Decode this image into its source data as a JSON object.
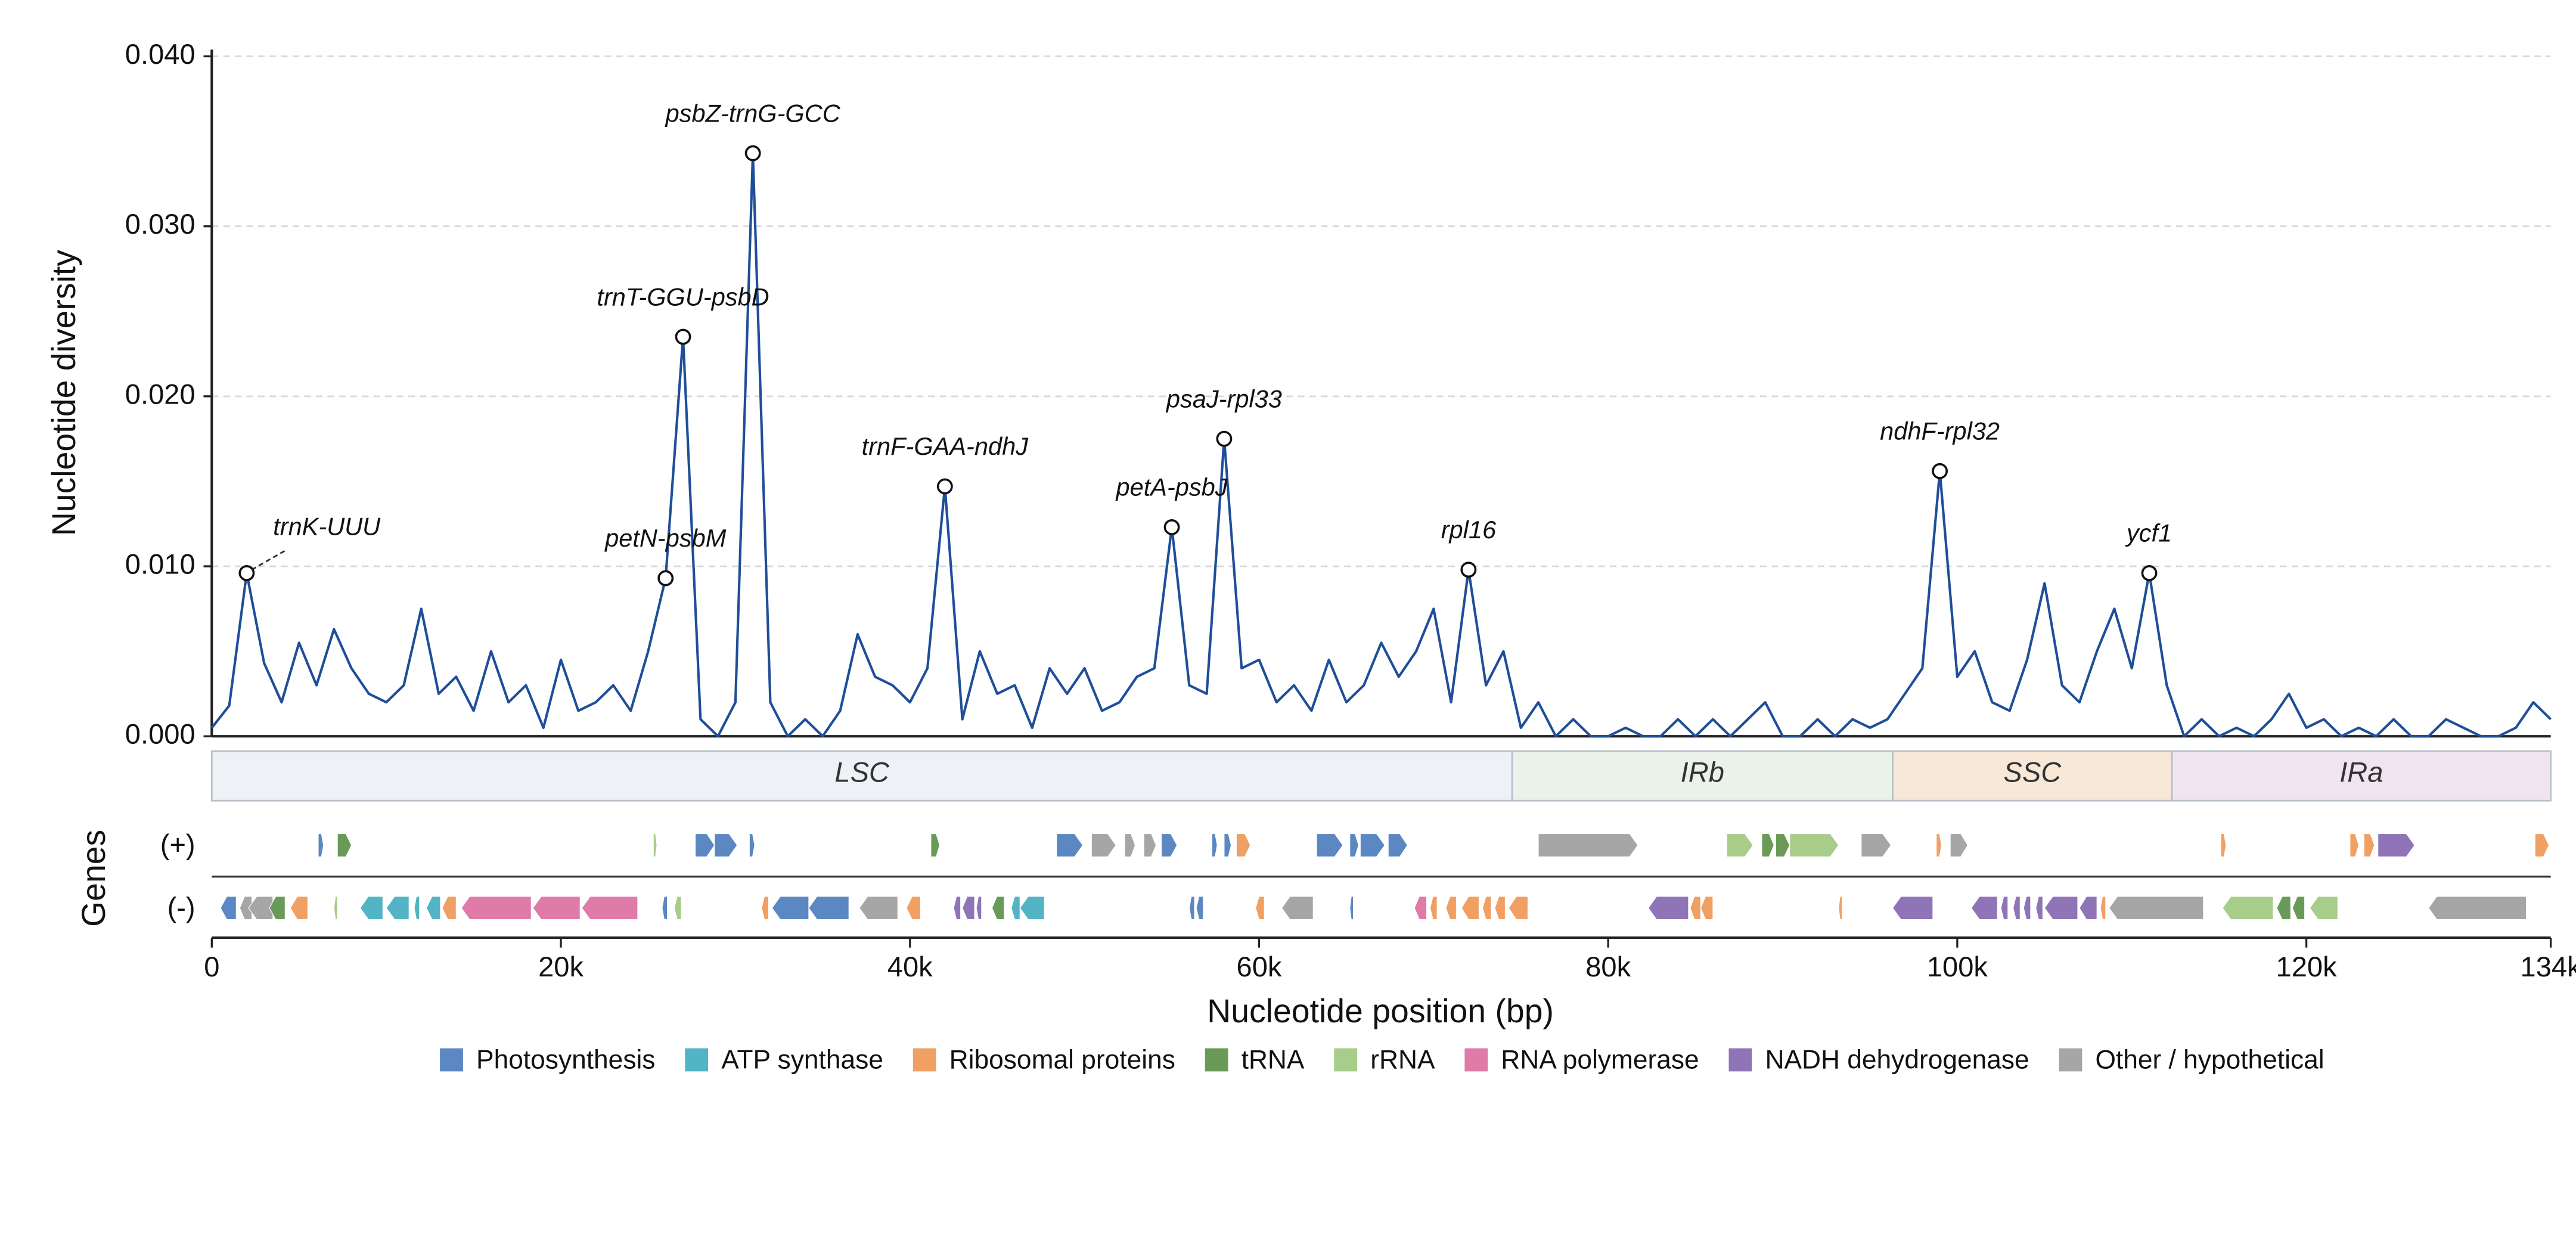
{
  "chart_data": {
    "type": "line",
    "ylabel": "Nucleotide diversity",
    "xlabel": "Nucleotide position (bp)",
    "genes_label": "Genes",
    "strands": [
      "(+)",
      "(-)"
    ],
    "color": "#1f4e99",
    "grid": true,
    "xlim": [
      0,
      134000
    ],
    "ylim": [
      0,
      0.0404
    ],
    "xticks": [
      0,
      {
        "value": 20000,
        "label": "20k"
      },
      {
        "value": 40000,
        "label": "40k"
      },
      {
        "value": 60000,
        "label": "60k"
      },
      {
        "value": 80000,
        "label": "80k"
      },
      {
        "value": 100000,
        "label": "100k"
      },
      {
        "value": 120000,
        "label": "120k"
      },
      {
        "value": 134000,
        "label": "134k"
      }
    ],
    "yticks": [
      {
        "value": 0,
        "label": "0.000"
      },
      {
        "value": 0.01,
        "label": "0.010"
      },
      {
        "value": 0.02,
        "label": "0.020"
      },
      {
        "value": 0.03,
        "label": "0.030"
      },
      {
        "value": 0.04,
        "label": "0.040"
      }
    ],
    "x": [
      0,
      1000,
      2000,
      3000,
      4000,
      5000,
      6000,
      7000,
      8000,
      9000,
      10000,
      11000,
      12000,
      13000,
      14000,
      15000,
      16000,
      17000,
      18000,
      19000,
      20000,
      21000,
      22000,
      23000,
      24000,
      25000,
      26000,
      27000,
      28000,
      29000,
      30000,
      31000,
      32000,
      33000,
      34000,
      35000,
      36000,
      37000,
      38000,
      39000,
      40000,
      41000,
      42000,
      43000,
      44000,
      45000,
      46000,
      47000,
      48000,
      49000,
      50000,
      51000,
      52000,
      53000,
      54000,
      55000,
      56000,
      57000,
      58000,
      59000,
      60000,
      61000,
      62000,
      63000,
      64000,
      65000,
      66000,
      67000,
      68000,
      69000,
      70000,
      71000,
      72000,
      73000,
      74000,
      75000,
      76000,
      77000,
      78000,
      79000,
      80000,
      81000,
      82000,
      83000,
      84000,
      85000,
      86000,
      87000,
      88000,
      89000,
      90000,
      91000,
      92000,
      93000,
      94000,
      95000,
      96000,
      97000,
      98000,
      99000,
      100000,
      101000,
      102000,
      103000,
      104000,
      105000,
      106000,
      107000,
      108000,
      109000,
      110000,
      111000,
      112000,
      113000,
      114000,
      115000,
      116000,
      117000,
      118000,
      119000,
      120000,
      121000,
      122000,
      123000,
      124000,
      125000,
      126000,
      127000,
      128000,
      129000,
      130000,
      131000,
      132000,
      133000,
      134000
    ],
    "values": [
      0.0005,
      0.0018,
      0.0096,
      0.0043,
      0.002,
      0.0055,
      0.003,
      0.0063,
      0.004,
      0.0025,
      0.002,
      0.003,
      0.0075,
      0.0025,
      0.0035,
      0.0015,
      0.005,
      0.002,
      0.003,
      0.0005,
      0.0045,
      0.0015,
      0.002,
      0.003,
      0.0015,
      0.005,
      0.0093,
      0.0235,
      0.001,
      0,
      0.002,
      0.0343,
      0.002,
      0,
      0.001,
      0,
      0.0015,
      0.006,
      0.0035,
      0.003,
      0.002,
      0.004,
      0.0147,
      0.001,
      0.005,
      0.0025,
      0.003,
      0.0005,
      0.004,
      0.0025,
      0.004,
      0.0015,
      0.002,
      0.0035,
      0.004,
      0.0123,
      0.003,
      0.0025,
      0.0175,
      0.004,
      0.0045,
      0.002,
      0.003,
      0.0015,
      0.0045,
      0.002,
      0.003,
      0.0055,
      0.0035,
      0.005,
      0.0075,
      0.002,
      0.0098,
      0.003,
      0.005,
      0.0005,
      0.002,
      0,
      0.001,
      0,
      0,
      0.0005,
      0,
      0,
      0.001,
      0,
      0.001,
      0,
      0.001,
      0.002,
      0,
      0,
      0.001,
      0,
      0.001,
      0.0005,
      0.001,
      0.0025,
      0.004,
      0.0156,
      0.0035,
      0.005,
      0.002,
      0.0015,
      0.0045,
      0.009,
      0.003,
      0.002,
      0.005,
      0.0075,
      0.004,
      0.0096,
      0.003,
      0,
      0.001,
      0,
      0.0005,
      0,
      0.001,
      0.0025,
      0.0005,
      0.001,
      0,
      0.0005,
      0,
      0.001,
      0,
      0,
      0.001,
      0.0005,
      0,
      0,
      0.0005,
      0.002,
      0.001
    ],
    "annotations": [
      {
        "label": "trnK-UUU",
        "x": 2000,
        "y": 0.0096
      },
      {
        "label": "petN-psbM",
        "x": 26000,
        "y": 0.0093
      },
      {
        "label": "trnT-GGU-psbD",
        "x": 27000,
        "y": 0.0235
      },
      {
        "label": "psbZ-trnG-GCC",
        "x": 31000,
        "y": 0.0343
      },
      {
        "label": "trnF-GAA-ndhJ",
        "x": 42000,
        "y": 0.0147
      },
      {
        "label": "petA-psbJ",
        "x": 55000,
        "y": 0.0123
      },
      {
        "label": "psaJ-rpl33",
        "x": 58000,
        "y": 0.0175
      },
      {
        "label": "rpl16",
        "x": 72000,
        "y": 0.0098
      },
      {
        "label": "ndhF-rpl32",
        "x": 99000,
        "y": 0.0156
      },
      {
        "label": "ycf1",
        "x": 111000,
        "y": 0.0096
      }
    ],
    "regions": [
      {
        "name": "LSC",
        "start": 0,
        "end": 74500,
        "color": "#eef2f6"
      },
      {
        "name": "IRb",
        "start": 74500,
        "end": 96300,
        "color": "#ebf2ea"
      },
      {
        "name": "SSC",
        "start": 96300,
        "end": 112300,
        "color": "#f8e8d8"
      },
      {
        "name": "IRa",
        "start": 112300,
        "end": 134000,
        "color": "#f1e4f1"
      }
    ],
    "gene_categories": [
      {
        "name": "Photosynthesis",
        "color": "#5b87c2"
      },
      {
        "name": "ATP synthase",
        "color": "#52b4c4"
      },
      {
        "name": "Ribosomal proteins",
        "color": "#f0a062"
      },
      {
        "name": "tRNA",
        "color": "#6a9a58"
      },
      {
        "name": "rRNA",
        "color": "#a8cc8a"
      },
      {
        "name": "RNA polymerase",
        "color": "#e07aa8"
      },
      {
        "name": "NADH dehydrogenase",
        "color": "#8f75b8"
      },
      {
        "name": "Other / hypothetical",
        "color": "#a6a6a6"
      }
    ],
    "genes": [
      {
        "start": 6100,
        "end": 6400,
        "strand": 0,
        "category": 0
      },
      {
        "start": 7200,
        "end": 8000,
        "strand": 0,
        "category": 3
      },
      {
        "start": 25300,
        "end": 25500,
        "strand": 0,
        "category": 4
      },
      {
        "start": 27700,
        "end": 28800,
        "strand": 0,
        "category": 0
      },
      {
        "start": 28800,
        "end": 30100,
        "strand": 0,
        "category": 0
      },
      {
        "start": 30800,
        "end": 31100,
        "strand": 0,
        "category": 0
      },
      {
        "start": 41200,
        "end": 41700,
        "strand": 0,
        "category": 3
      },
      {
        "start": 48400,
        "end": 49900,
        "strand": 0,
        "category": 0
      },
      {
        "start": 50400,
        "end": 51800,
        "strand": 0,
        "category": 7
      },
      {
        "start": 52300,
        "end": 52900,
        "strand": 0,
        "category": 7
      },
      {
        "start": 53400,
        "end": 54100,
        "strand": 0,
        "category": 7
      },
      {
        "start": 54400,
        "end": 55300,
        "strand": 0,
        "category": 0
      },
      {
        "start": 57300,
        "end": 57600,
        "strand": 0,
        "category": 0
      },
      {
        "start": 58000,
        "end": 58400,
        "strand": 0,
        "category": 0
      },
      {
        "start": 58700,
        "end": 59500,
        "strand": 0,
        "category": 2
      },
      {
        "start": 63300,
        "end": 64800,
        "strand": 0,
        "category": 0
      },
      {
        "start": 65200,
        "end": 65700,
        "strand": 0,
        "category": 0
      },
      {
        "start": 65800,
        "end": 67200,
        "strand": 0,
        "category": 0
      },
      {
        "start": 67400,
        "end": 68500,
        "strand": 0,
        "category": 0
      },
      {
        "start": 76000,
        "end": 81700,
        "strand": 0,
        "category": 7
      },
      {
        "start": 86800,
        "end": 88300,
        "strand": 0,
        "category": 4
      },
      {
        "start": 88800,
        "end": 89500,
        "strand": 0,
        "category": 3
      },
      {
        "start": 89600,
        "end": 90400,
        "strand": 0,
        "category": 3
      },
      {
        "start": 90400,
        "end": 93200,
        "strand": 0,
        "category": 4
      },
      {
        "start": 94500,
        "end": 96200,
        "strand": 0,
        "category": 7
      },
      {
        "start": 98800,
        "end": 99100,
        "strand": 0,
        "category": 2
      },
      {
        "start": 99600,
        "end": 100600,
        "strand": 0,
        "category": 7
      },
      {
        "start": 115100,
        "end": 115400,
        "strand": 0,
        "category": 2
      },
      {
        "start": 122500,
        "end": 123000,
        "strand": 0,
        "category": 2
      },
      {
        "start": 123300,
        "end": 123900,
        "strand": 0,
        "category": 2
      },
      {
        "start": 124100,
        "end": 126200,
        "strand": 0,
        "category": 6
      },
      {
        "start": 133100,
        "end": 133900,
        "strand": 0,
        "category": 2
      },
      {
        "start": 500,
        "end": 1400,
        "strand": 1,
        "category": 0
      },
      {
        "start": 1600,
        "end": 2300,
        "strand": 1,
        "category": 7
      },
      {
        "start": 2100,
        "end": 3500,
        "strand": 1,
        "category": 7
      },
      {
        "start": 3300,
        "end": 4200,
        "strand": 1,
        "category": 3
      },
      {
        "start": 4500,
        "end": 5500,
        "strand": 1,
        "category": 2
      },
      {
        "start": 7000,
        "end": 7200,
        "strand": 1,
        "category": 4
      },
      {
        "start": 8500,
        "end": 9800,
        "strand": 1,
        "category": 1
      },
      {
        "start": 10000,
        "end": 11300,
        "strand": 1,
        "category": 1
      },
      {
        "start": 11600,
        "end": 11900,
        "strand": 1,
        "category": 1
      },
      {
        "start": 12300,
        "end": 13100,
        "strand": 1,
        "category": 1
      },
      {
        "start": 13200,
        "end": 14000,
        "strand": 1,
        "category": 2
      },
      {
        "start": 14300,
        "end": 18300,
        "strand": 1,
        "category": 5
      },
      {
        "start": 18400,
        "end": 21100,
        "strand": 1,
        "category": 5
      },
      {
        "start": 21200,
        "end": 24400,
        "strand": 1,
        "category": 5
      },
      {
        "start": 25800,
        "end": 26100,
        "strand": 1,
        "category": 0
      },
      {
        "start": 26500,
        "end": 26900,
        "strand": 1,
        "category": 4
      },
      {
        "start": 31500,
        "end": 31900,
        "strand": 1,
        "category": 2
      },
      {
        "start": 32100,
        "end": 34200,
        "strand": 1,
        "category": 0
      },
      {
        "start": 34200,
        "end": 36500,
        "strand": 1,
        "category": 0
      },
      {
        "start": 37100,
        "end": 39300,
        "strand": 1,
        "category": 7
      },
      {
        "start": 39800,
        "end": 40600,
        "strand": 1,
        "category": 2
      },
      {
        "start": 42500,
        "end": 42900,
        "strand": 1,
        "category": 6
      },
      {
        "start": 43000,
        "end": 43700,
        "strand": 1,
        "category": 6
      },
      {
        "start": 43800,
        "end": 44100,
        "strand": 1,
        "category": 6
      },
      {
        "start": 44700,
        "end": 45400,
        "strand": 1,
        "category": 3
      },
      {
        "start": 45800,
        "end": 46300,
        "strand": 1,
        "category": 1
      },
      {
        "start": 46300,
        "end": 47700,
        "strand": 1,
        "category": 1
      },
      {
        "start": 56000,
        "end": 56300,
        "strand": 1,
        "category": 0
      },
      {
        "start": 56400,
        "end": 56800,
        "strand": 1,
        "category": 0
      },
      {
        "start": 59800,
        "end": 60300,
        "strand": 1,
        "category": 2
      },
      {
        "start": 61300,
        "end": 63100,
        "strand": 1,
        "category": 7
      },
      {
        "start": 65200,
        "end": 65400,
        "strand": 1,
        "category": 0
      },
      {
        "start": 68900,
        "end": 69600,
        "strand": 1,
        "category": 5
      },
      {
        "start": 69800,
        "end": 70200,
        "strand": 1,
        "category": 2
      },
      {
        "start": 70700,
        "end": 71300,
        "strand": 1,
        "category": 2
      },
      {
        "start": 71600,
        "end": 72600,
        "strand": 1,
        "category": 2
      },
      {
        "start": 72800,
        "end": 73300,
        "strand": 1,
        "category": 2
      },
      {
        "start": 73500,
        "end": 74100,
        "strand": 1,
        "category": 2
      },
      {
        "start": 74300,
        "end": 75400,
        "strand": 1,
        "category": 2
      },
      {
        "start": 82300,
        "end": 84600,
        "strand": 1,
        "category": 6
      },
      {
        "start": 84700,
        "end": 85300,
        "strand": 1,
        "category": 2
      },
      {
        "start": 85300,
        "end": 86000,
        "strand": 1,
        "category": 2
      },
      {
        "start": 93200,
        "end": 93400,
        "strand": 1,
        "category": 2
      },
      {
        "start": 96300,
        "end": 98600,
        "strand": 1,
        "category": 6
      },
      {
        "start": 100800,
        "end": 102300,
        "strand": 1,
        "category": 6
      },
      {
        "start": 102500,
        "end": 102900,
        "strand": 1,
        "category": 6
      },
      {
        "start": 103200,
        "end": 103600,
        "strand": 1,
        "category": 6
      },
      {
        "start": 103800,
        "end": 104200,
        "strand": 1,
        "category": 6
      },
      {
        "start": 104500,
        "end": 104900,
        "strand": 1,
        "category": 6
      },
      {
        "start": 105000,
        "end": 106900,
        "strand": 1,
        "category": 6
      },
      {
        "start": 107000,
        "end": 108000,
        "strand": 1,
        "category": 6
      },
      {
        "start": 108200,
        "end": 108500,
        "strand": 1,
        "category": 2
      },
      {
        "start": 108700,
        "end": 114100,
        "strand": 1,
        "category": 7
      },
      {
        "start": 115200,
        "end": 118100,
        "strand": 1,
        "category": 4
      },
      {
        "start": 118300,
        "end": 119100,
        "strand": 1,
        "category": 3
      },
      {
        "start": 119200,
        "end": 119900,
        "strand": 1,
        "category": 3
      },
      {
        "start": 120200,
        "end": 121800,
        "strand": 1,
        "category": 4
      },
      {
        "start": 127000,
        "end": 132600,
        "strand": 1,
        "category": 7
      }
    ]
  }
}
